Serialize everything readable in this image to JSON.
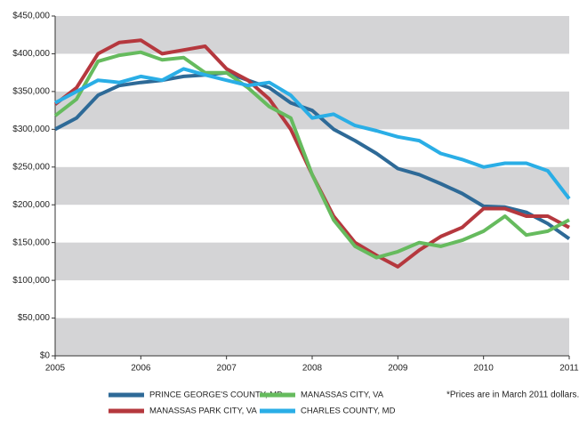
{
  "chart_data": {
    "type": "line",
    "x": [
      2005,
      2005.25,
      2005.5,
      2005.75,
      2006,
      2006.25,
      2006.5,
      2006.75,
      2007,
      2007.25,
      2007.5,
      2007.75,
      2008,
      2008.25,
      2008.5,
      2008.75,
      2009,
      2009.25,
      2009.5,
      2009.75,
      2010,
      2010.25,
      2010.5,
      2010.75,
      2011
    ],
    "series": [
      {
        "name": "PRINCE GEORGE'S COUNTY, MD",
        "color": "#2e6a97",
        "values": [
          300000,
          315000,
          345000,
          358000,
          362000,
          365000,
          370000,
          372000,
          375000,
          365000,
          355000,
          335000,
          325000,
          300000,
          285000,
          268000,
          248000,
          240000,
          228000,
          215000,
          198000,
          197000,
          190000,
          175000,
          155000
        ]
      },
      {
        "name": "MANASSAS PARK CITY, VA",
        "color": "#b5383e",
        "values": [
          333000,
          355000,
          400000,
          415000,
          418000,
          400000,
          405000,
          410000,
          380000,
          365000,
          340000,
          300000,
          240000,
          185000,
          150000,
          133000,
          118000,
          140000,
          158000,
          170000,
          195000,
          195000,
          185000,
          185000,
          170000
        ]
      },
      {
        "name": "MANASSAS CITY, VA",
        "color": "#66bb5e",
        "values": [
          318000,
          340000,
          390000,
          398000,
          402000,
          392000,
          395000,
          375000,
          375000,
          355000,
          330000,
          315000,
          240000,
          180000,
          145000,
          130000,
          138000,
          150000,
          145000,
          153000,
          165000,
          185000,
          160000,
          165000,
          180000
        ]
      },
      {
        "name": "CHARLES COUNTY, MD",
        "color": "#2aaee6",
        "values": [
          335000,
          350000,
          365000,
          362000,
          370000,
          365000,
          380000,
          372000,
          365000,
          358000,
          362000,
          345000,
          315000,
          320000,
          305000,
          298000,
          290000,
          285000,
          268000,
          260000,
          250000,
          255000,
          255000,
          245000,
          208000
        ]
      }
    ],
    "xlim": [
      2005,
      2011
    ],
    "xticks": [
      2005,
      2006,
      2007,
      2008,
      2009,
      2010,
      2011
    ],
    "ylim": [
      0,
      450000
    ],
    "yticks": [
      {
        "value": 0,
        "label": "$0"
      },
      {
        "value": 50000,
        "label": "$50,000"
      },
      {
        "value": 100000,
        "label": "$100,000"
      },
      {
        "value": 150000,
        "label": "$150,000"
      },
      {
        "value": 200000,
        "label": "$200,000"
      },
      {
        "value": 250000,
        "label": "$250,000"
      },
      {
        "value": 300000,
        "label": "$300,000"
      },
      {
        "value": 350000,
        "label": "$350,000"
      },
      {
        "value": 400000,
        "label": "$400,000"
      },
      {
        "value": 450000,
        "label": "$450,000"
      }
    ],
    "annotation": "*Prices are in March 2011 dollars.",
    "bands": true
  }
}
